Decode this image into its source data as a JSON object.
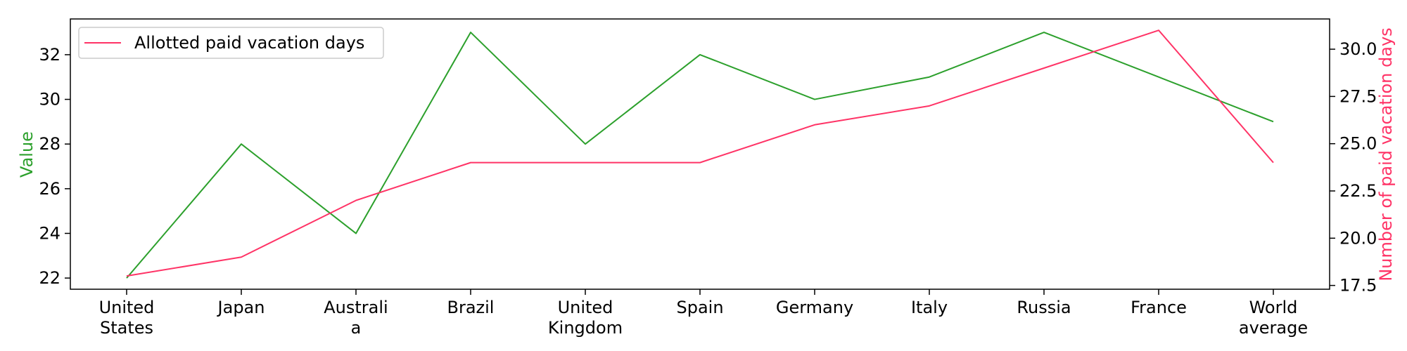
{
  "chart_data": {
    "type": "line",
    "categories": [
      [
        "United",
        "States"
      ],
      [
        "Japan"
      ],
      [
        "Australi",
        "a"
      ],
      [
        "Brazil"
      ],
      [
        "United",
        "Kingdom"
      ],
      [
        "Spain"
      ],
      [
        "Germany"
      ],
      [
        "Italy"
      ],
      [
        "Russia"
      ],
      [
        "France"
      ],
      [
        "World",
        "average"
      ]
    ],
    "series": [
      {
        "axis": "left",
        "color": "#2ca02c",
        "values": [
          22,
          28,
          24,
          33,
          28,
          32,
          30,
          31,
          33,
          31,
          29
        ]
      },
      {
        "name": "Allotted paid vacation days",
        "axis": "right",
        "color": "#ff3366",
        "values": [
          18,
          19,
          22,
          24,
          24,
          24,
          26,
          27,
          29,
          31,
          24
        ]
      }
    ],
    "ylabel": "Value",
    "ylabel_right": "Number of paid vacation days",
    "ylim": [
      21.5,
      33.6
    ],
    "ylim_right": [
      17.3,
      31.6
    ],
    "yticks": [
      22,
      24,
      26,
      28,
      30,
      32
    ],
    "yticks_right": [
      "17.5",
      "20.0",
      "22.5",
      "25.0",
      "27.5",
      "30.0"
    ],
    "legend_position": "top-left",
    "grid": false
  }
}
